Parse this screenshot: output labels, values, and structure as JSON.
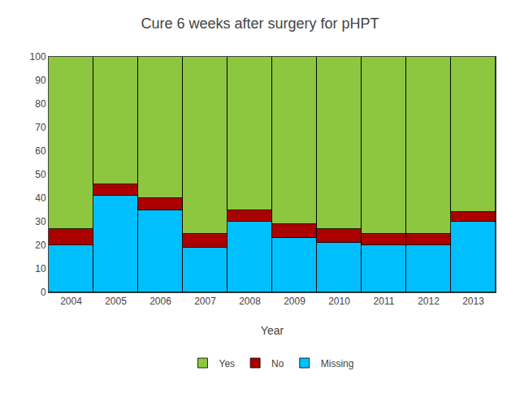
{
  "chart_data": {
    "type": "bar",
    "stacked": true,
    "title": "Cure 6 weeks after surgery for pHPT",
    "xlabel": "Year",
    "categories": [
      "2004",
      "2005",
      "2006",
      "2007",
      "2008",
      "2009",
      "2010",
      "2011",
      "2012",
      "2013"
    ],
    "series": [
      {
        "name": "Missing",
        "color": "#00BFFF",
        "values": [
          20,
          41,
          35,
          19,
          30,
          23,
          21,
          20,
          20,
          30
        ]
      },
      {
        "name": "No",
        "color": "#AA0000",
        "values": [
          7,
          5,
          5,
          6,
          5,
          6,
          6,
          5,
          5,
          4
        ]
      },
      {
        "name": "Yes",
        "color": "#8DC63F",
        "values": [
          73,
          54,
          60,
          75,
          65,
          71,
          73,
          75,
          75,
          66
        ]
      }
    ],
    "ylim": [
      0,
      100
    ],
    "yticks": [
      0,
      10,
      20,
      30,
      40,
      50,
      60,
      70,
      80,
      90,
      100
    ],
    "grid": false,
    "legend": "bottom"
  }
}
